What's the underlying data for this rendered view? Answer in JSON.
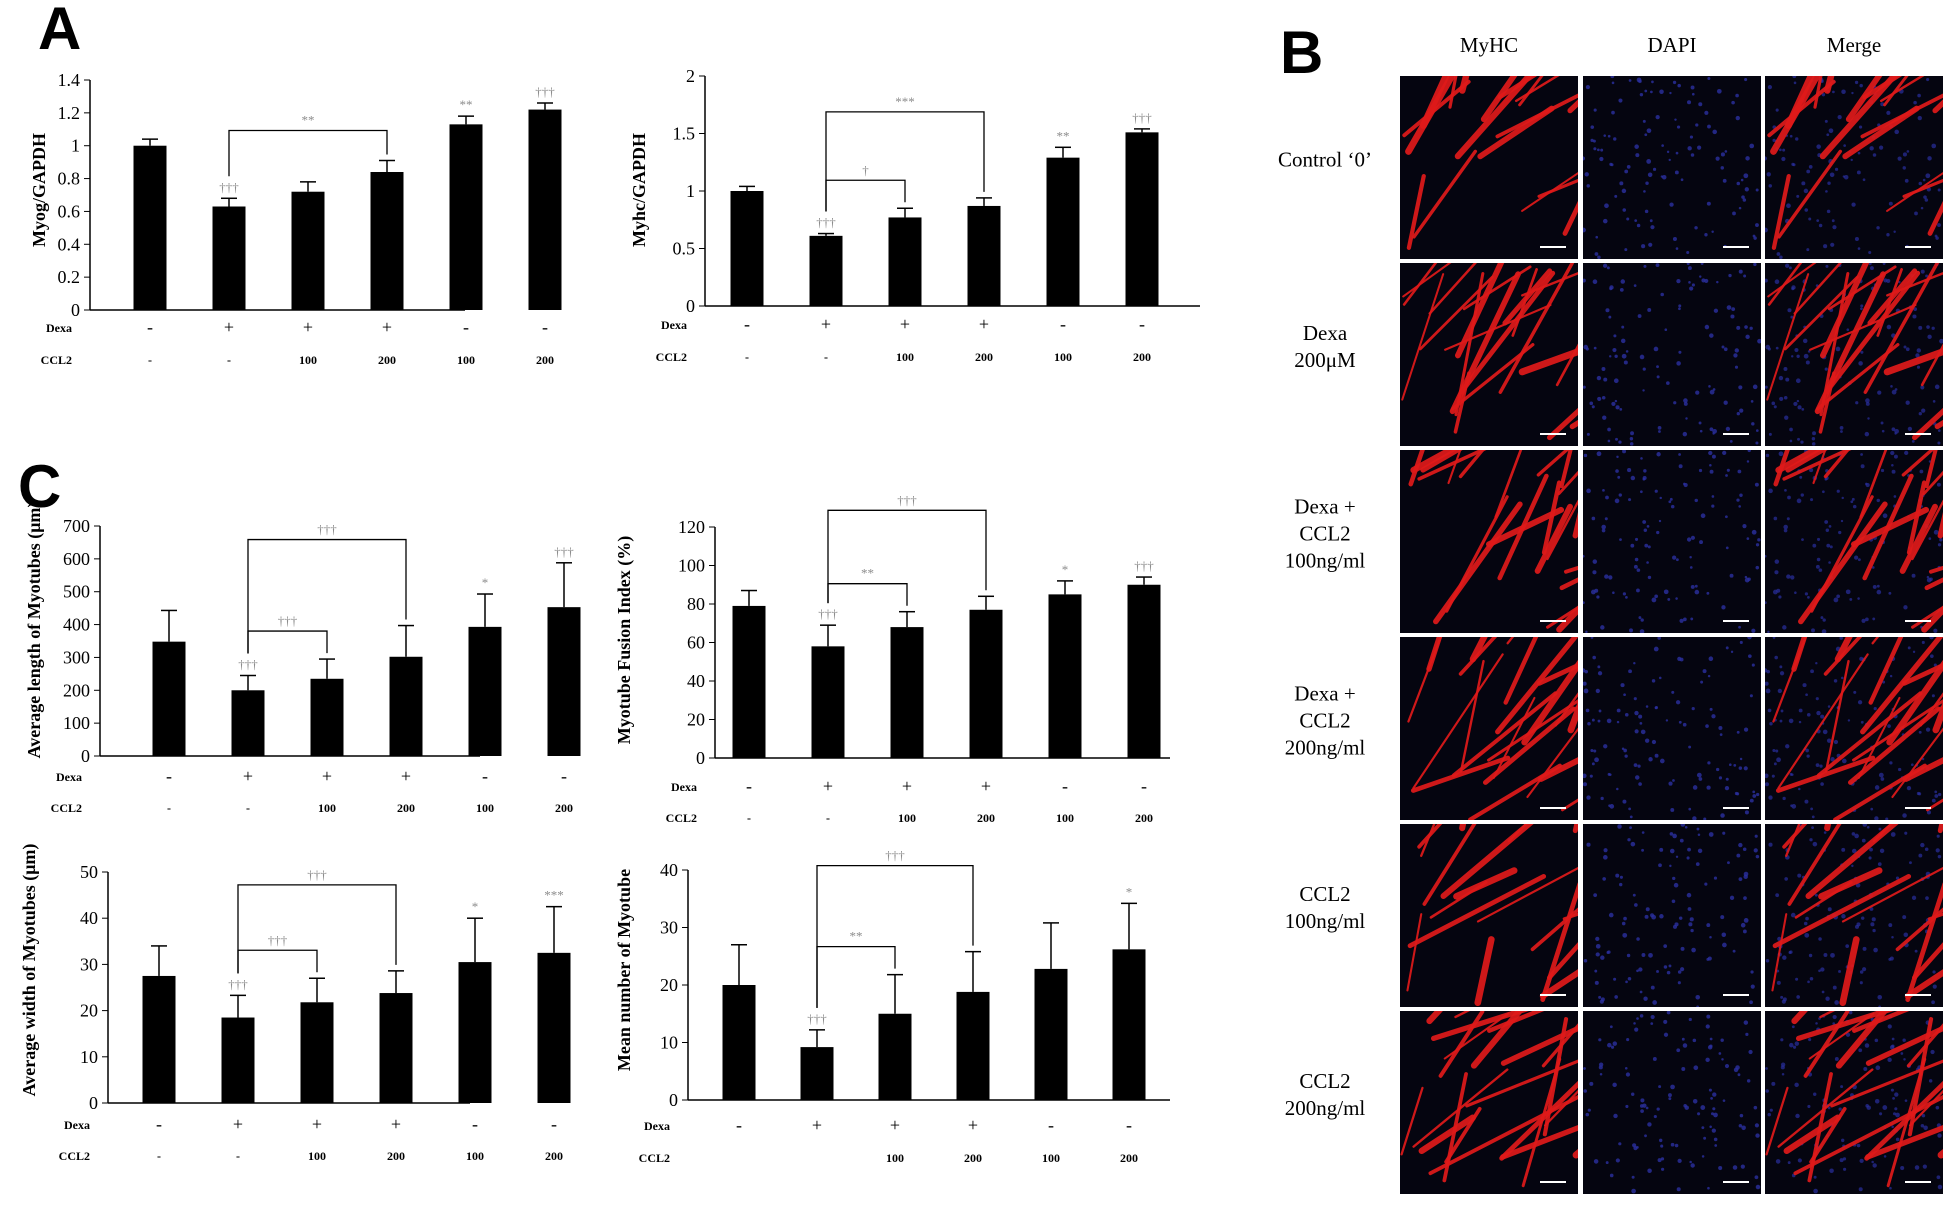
{
  "panels": {
    "a": "A",
    "b": "B",
    "c": "C"
  },
  "colors": {
    "bar": "#000000",
    "myhc_red": "#e01a1a",
    "dapi_blue": "#2a2fa0",
    "tick_gray": "#8c8c8c"
  },
  "chart_data": [
    {
      "id": "myog",
      "type": "bar",
      "ylabel": "Myog/GAPDH",
      "ylim": [
        0,
        1.4
      ],
      "yticks": [
        "0",
        "0.2",
        "0.4",
        "0.6",
        "0.8",
        "1",
        "1.2",
        "1.4"
      ],
      "values": [
        1.0,
        0.63,
        0.72,
        0.84,
        1.13,
        1.22
      ],
      "errors": [
        0.04,
        0.05,
        0.06,
        0.07,
        0.05,
        0.04
      ],
      "dexa": [
        "-",
        "+",
        "+",
        "+",
        "-",
        "-"
      ],
      "ccl2": [
        "-",
        "-",
        "100",
        "200",
        "100",
        "200"
      ],
      "marks": [
        "",
        "†††",
        "",
        "",
        "**",
        "†††"
      ],
      "brackets": [
        {
          "from": 1,
          "to": 3,
          "label": "**"
        }
      ]
    },
    {
      "id": "myhc",
      "type": "bar",
      "ylabel": "Myhc/GAPDH",
      "ylim": [
        0,
        2
      ],
      "yticks": [
        "0",
        "0.5",
        "1",
        "1.5",
        "2"
      ],
      "values": [
        1.0,
        0.61,
        0.77,
        0.87,
        1.29,
        1.51
      ],
      "errors": [
        0.04,
        0.02,
        0.08,
        0.07,
        0.09,
        0.03
      ],
      "dexa": [
        "-",
        "+",
        "+",
        "+",
        "-",
        "-"
      ],
      "ccl2": [
        "-",
        "-",
        "100",
        "200",
        "100",
        "200"
      ],
      "marks": [
        "",
        "†††",
        "",
        "",
        "**",
        "†††"
      ],
      "brackets": [
        {
          "from": 1,
          "to": 2,
          "label": "†"
        },
        {
          "from": 1,
          "to": 3,
          "label": "***"
        }
      ]
    },
    {
      "id": "length",
      "type": "bar",
      "ylabel": "Average length of Myotubes (μm)",
      "ylim": [
        0,
        700
      ],
      "yticks": [
        "0",
        "100",
        "200",
        "300",
        "400",
        "500",
        "600",
        "700"
      ],
      "values": [
        348,
        200,
        235,
        302,
        393,
        453
      ],
      "errors": [
        95,
        45,
        60,
        95,
        100,
        135
      ],
      "dexa": [
        "-",
        "+",
        "+",
        "+",
        "-",
        "-"
      ],
      "ccl2": [
        "-",
        "-",
        "100",
        "200",
        "100",
        "200"
      ],
      "marks": [
        "",
        "†††",
        "",
        "",
        "*",
        "†††"
      ],
      "brackets": [
        {
          "from": 1,
          "to": 2,
          "label": "†††"
        },
        {
          "from": 1,
          "to": 3,
          "label": "†††"
        }
      ]
    },
    {
      "id": "fusion",
      "type": "bar",
      "ylabel": "Myotube Fusion Index (%)",
      "ylim": [
        0,
        120
      ],
      "yticks": [
        "0",
        "20",
        "40",
        "60",
        "80",
        "100",
        "120"
      ],
      "values": [
        79,
        58,
        68,
        77,
        85,
        90
      ],
      "errors": [
        8,
        11,
        8,
        7,
        7,
        4
      ],
      "dexa": [
        "-",
        "+",
        "+",
        "+",
        "-",
        "-"
      ],
      "ccl2": [
        "-",
        "-",
        "100",
        "200",
        "100",
        "200"
      ],
      "marks": [
        "",
        "†††",
        "",
        "",
        "*",
        "†††"
      ],
      "brackets": [
        {
          "from": 1,
          "to": 2,
          "label": "**"
        },
        {
          "from": 1,
          "to": 3,
          "label": "†††"
        }
      ]
    },
    {
      "id": "width",
      "type": "bar",
      "ylabel": "Average width of Myotubes (μm)",
      "ylim": [
        0,
        50
      ],
      "yticks": [
        "0",
        "10",
        "20",
        "30",
        "40",
        "50"
      ],
      "values": [
        27.5,
        18.5,
        21.8,
        23.8,
        30.5,
        32.5
      ],
      "errors": [
        6.5,
        4.8,
        5.2,
        4.8,
        9.5,
        10.0
      ],
      "dexa": [
        "-",
        "+",
        "+",
        "+",
        "-",
        "-"
      ],
      "ccl2": [
        "-",
        "-",
        "100",
        "200",
        "100",
        "200"
      ],
      "marks": [
        "",
        "†††",
        "",
        "",
        "*",
        "***"
      ],
      "brackets": [
        {
          "from": 1,
          "to": 2,
          "label": "†††"
        },
        {
          "from": 1,
          "to": 3,
          "label": "†††"
        }
      ]
    },
    {
      "id": "number",
      "type": "bar",
      "ylabel": "Mean number of Myotube",
      "ylim": [
        0,
        40
      ],
      "yticks": [
        "0",
        "10",
        "20",
        "30",
        "40"
      ],
      "values": [
        20,
        9.2,
        15,
        18.8,
        22.8,
        26.2
      ],
      "errors": [
        7,
        3,
        6.8,
        7,
        8,
        8
      ],
      "dexa": [
        "-",
        "+",
        "+",
        "+",
        "-",
        "-"
      ],
      "ccl2": [
        "",
        "",
        "100",
        "200",
        "100",
        "200"
      ],
      "marks": [
        "",
        "†††",
        "",
        "",
        "",
        "*"
      ],
      "brackets": [
        {
          "from": 1,
          "to": 2,
          "label": "**"
        },
        {
          "from": 1,
          "to": 3,
          "label": "†††"
        }
      ]
    }
  ],
  "row_labels": {
    "dexa": "Dexa",
    "ccl2": "CCL2"
  },
  "figure_b": {
    "columns": [
      "MyHC",
      "DAPI",
      "Merge"
    ],
    "rows": [
      {
        "lines": [
          "Control ‘0’"
        ]
      },
      {
        "lines": [
          "Dexa",
          "200μM"
        ]
      },
      {
        "lines": [
          "Dexa +",
          "CCL2",
          "100ng/ml"
        ]
      },
      {
        "lines": [
          "Dexa +",
          "CCL2",
          "200ng/ml"
        ]
      },
      {
        "lines": [
          "CCL2",
          "100ng/ml"
        ]
      },
      {
        "lines": [
          "CCL2",
          "200ng/ml"
        ]
      }
    ]
  }
}
